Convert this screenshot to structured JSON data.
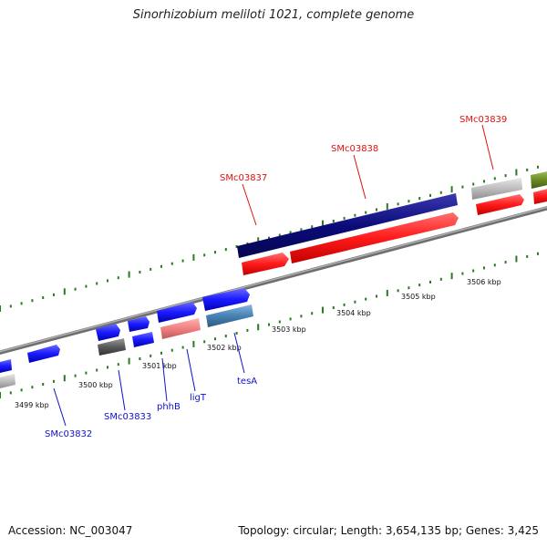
{
  "title": "Sinorhizobium meliloti 1021, complete genome",
  "footer": {
    "accession": "Accession: NC_003047",
    "topology": "Topology: circular; Length: 3,654,135 bp; Genes: 3,425"
  },
  "kbp_labels": [
    "3499 kbp",
    "3500 kbp",
    "3501 kbp",
    "3502 kbp",
    "3503 kbp",
    "3504 kbp",
    "3505 kbp",
    "3506 kbp"
  ],
  "genes_forward": [
    {
      "label": "SMc03837",
      "color": "#e01010"
    },
    {
      "label": "SMc03838",
      "color": "#e01010"
    },
    {
      "label": "SMc03839",
      "color": "#e01010"
    }
  ],
  "genes_reverse": [
    {
      "label": "SMc03832",
      "color": "#1010d0"
    },
    {
      "label": "SMc03833",
      "color": "#1010d0"
    },
    {
      "label": "phhB",
      "color": "#1010d0"
    },
    {
      "label": "ligT",
      "color": "#1010d0"
    },
    {
      "label": "tesA",
      "color": "#1010d0"
    }
  ],
  "colors": {
    "backbone": "#8a8a8a",
    "tick": "#2a7a22",
    "navy": "#0b0b7a",
    "red": "#ff1a1a",
    "blue": "#1a1aff",
    "gray": "#bdbdbd",
    "darkgray": "#5a5a5a",
    "pink": "#f08080",
    "steel": "#4682b4",
    "olive": "#6b8e23"
  }
}
